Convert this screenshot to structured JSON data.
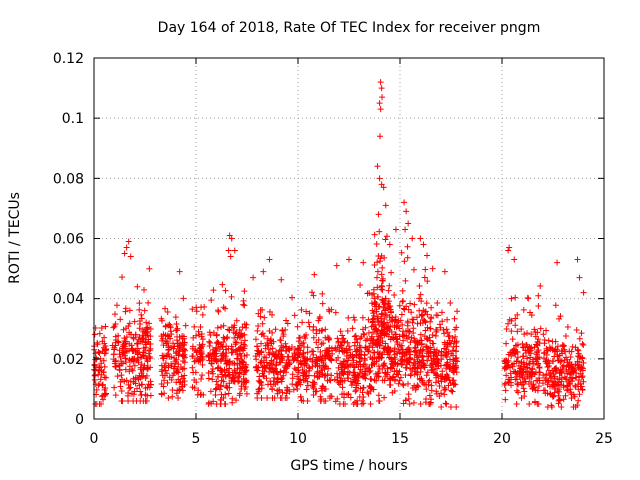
{
  "chart_data": {
    "type": "scatter",
    "title": "Day 164 of 2018, Rate Of TEC Index for receiver pngm",
    "xlabel": "GPS time / hours",
    "ylabel": "ROTI / TECUs",
    "xlim": [
      0,
      25
    ],
    "ylim": [
      0,
      0.12
    ],
    "xticks": [
      0,
      5,
      10,
      15,
      20,
      25
    ],
    "xtick_labels": [
      "0",
      "5",
      "10",
      "15",
      "20",
      "25"
    ],
    "yticks": [
      0,
      0.02,
      0.04,
      0.06,
      0.08,
      0.1,
      0.12
    ],
    "ytick_labels": [
      "0",
      "0.02",
      "0.04",
      "0.06",
      "0.08",
      "0.1",
      "0.12"
    ],
    "grid": true,
    "marker": "+",
    "color": "#ff0000",
    "data_gap_hours": [
      17.8,
      20.1
    ],
    "outliers": [
      {
        "x": 14.05,
        "y": 0.112
      },
      {
        "x": 14.1,
        "y": 0.11
      },
      {
        "x": 14.12,
        "y": 0.107
      },
      {
        "x": 14.0,
        "y": 0.105
      },
      {
        "x": 14.05,
        "y": 0.103
      },
      {
        "x": 14.02,
        "y": 0.094
      },
      {
        "x": 13.9,
        "y": 0.084
      },
      {
        "x": 14.0,
        "y": 0.08
      },
      {
        "x": 14.1,
        "y": 0.078
      },
      {
        "x": 14.2,
        "y": 0.077
      },
      {
        "x": 14.3,
        "y": 0.071
      },
      {
        "x": 13.95,
        "y": 0.068
      },
      {
        "x": 15.3,
        "y": 0.069
      },
      {
        "x": 15.2,
        "y": 0.072
      },
      {
        "x": 15.4,
        "y": 0.065
      },
      {
        "x": 15.25,
        "y": 0.063
      },
      {
        "x": 14.8,
        "y": 0.063
      },
      {
        "x": 15.6,
        "y": 0.06
      },
      {
        "x": 16.15,
        "y": 0.058
      },
      {
        "x": 16.0,
        "y": 0.06
      },
      {
        "x": 14.5,
        "y": 0.058
      },
      {
        "x": 6.65,
        "y": 0.061
      },
      {
        "x": 6.75,
        "y": 0.06
      },
      {
        "x": 6.6,
        "y": 0.056
      },
      {
        "x": 6.9,
        "y": 0.056
      },
      {
        "x": 6.7,
        "y": 0.054
      },
      {
        "x": 1.7,
        "y": 0.059
      },
      {
        "x": 1.6,
        "y": 0.057
      },
      {
        "x": 1.5,
        "y": 0.055
      },
      {
        "x": 1.8,
        "y": 0.054
      },
      {
        "x": 20.35,
        "y": 0.057
      },
      {
        "x": 20.3,
        "y": 0.056
      },
      {
        "x": 20.6,
        "y": 0.053
      },
      {
        "x": 22.7,
        "y": 0.052
      },
      {
        "x": 23.7,
        "y": 0.053
      },
      {
        "x": 24.0,
        "y": 0.042
      },
      {
        "x": 23.8,
        "y": 0.047
      },
      {
        "x": 8.6,
        "y": 0.053
      },
      {
        "x": 8.3,
        "y": 0.049
      },
      {
        "x": 12.5,
        "y": 0.053
      },
      {
        "x": 11.9,
        "y": 0.051
      },
      {
        "x": 13.2,
        "y": 0.052
      },
      {
        "x": 10.8,
        "y": 0.048
      },
      {
        "x": 4.2,
        "y": 0.049
      },
      {
        "x": 17.2,
        "y": 0.049
      },
      {
        "x": 16.6,
        "y": 0.05
      },
      {
        "x": 7.8,
        "y": 0.047
      }
    ],
    "segments": [
      {
        "start": 0.0,
        "end": 0.6,
        "min": 0.005,
        "center": 0.016,
        "spread": 0.008,
        "max": 0.034,
        "points": 70
      },
      {
        "start": 0.9,
        "end": 2.8,
        "min": 0.006,
        "center": 0.02,
        "spread": 0.01,
        "max": 0.05,
        "points": 240
      },
      {
        "start": 3.3,
        "end": 4.5,
        "min": 0.007,
        "center": 0.02,
        "spread": 0.009,
        "max": 0.047,
        "points": 150
      },
      {
        "start": 4.8,
        "end": 5.4,
        "min": 0.008,
        "center": 0.019,
        "spread": 0.008,
        "max": 0.038,
        "points": 60
      },
      {
        "start": 5.6,
        "end": 7.5,
        "min": 0.005,
        "center": 0.018,
        "spread": 0.009,
        "max": 0.045,
        "points": 260
      },
      {
        "start": 7.9,
        "end": 9.6,
        "min": 0.007,
        "center": 0.018,
        "spread": 0.009,
        "max": 0.047,
        "points": 200
      },
      {
        "start": 9.7,
        "end": 11.7,
        "min": 0.006,
        "center": 0.018,
        "spread": 0.009,
        "max": 0.045,
        "points": 230
      },
      {
        "start": 11.8,
        "end": 13.6,
        "min": 0.005,
        "center": 0.017,
        "spread": 0.009,
        "max": 0.045,
        "points": 220
      },
      {
        "start": 13.6,
        "end": 14.6,
        "min": 0.006,
        "center": 0.028,
        "spread": 0.014,
        "max": 0.066,
        "points": 230
      },
      {
        "start": 14.6,
        "end": 16.6,
        "min": 0.005,
        "center": 0.022,
        "spread": 0.011,
        "max": 0.06,
        "points": 300
      },
      {
        "start": 16.6,
        "end": 17.8,
        "min": 0.004,
        "center": 0.019,
        "spread": 0.009,
        "max": 0.045,
        "points": 160
      },
      {
        "start": 20.1,
        "end": 21.9,
        "min": 0.005,
        "center": 0.018,
        "spread": 0.008,
        "max": 0.045,
        "points": 210
      },
      {
        "start": 22.0,
        "end": 24.0,
        "min": 0.004,
        "center": 0.015,
        "spread": 0.008,
        "max": 0.04,
        "points": 230
      }
    ]
  }
}
